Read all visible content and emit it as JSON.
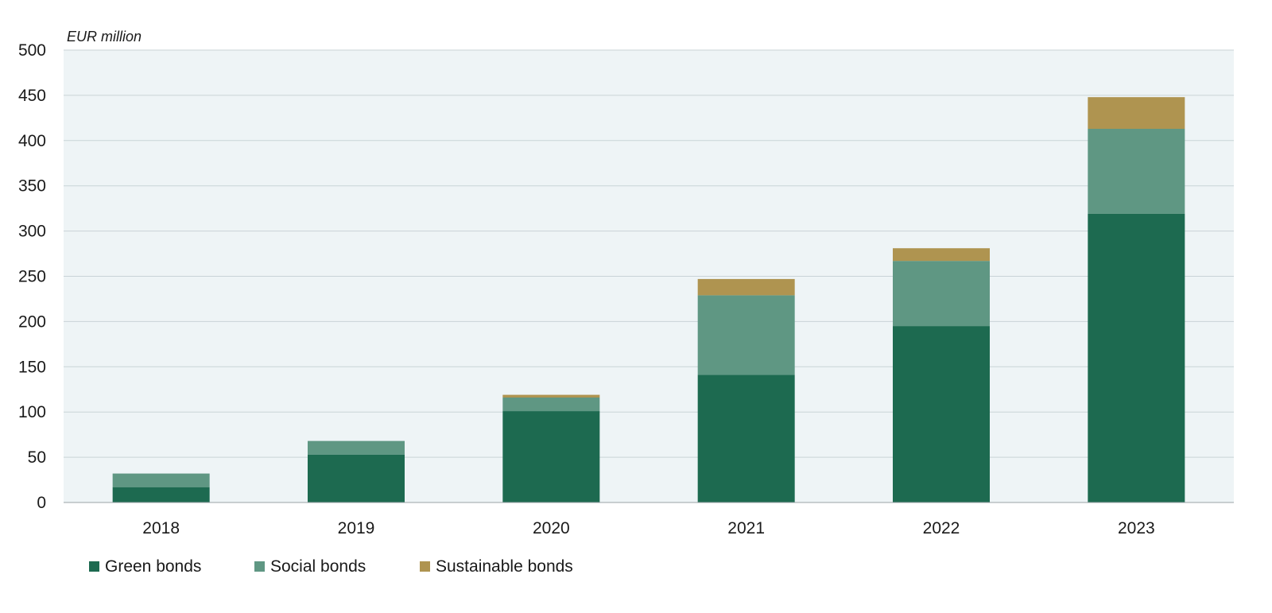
{
  "chart_data": {
    "type": "bar",
    "stacked": true,
    "unit_label": "EUR million",
    "categories": [
      "2018",
      "2019",
      "2020",
      "2021",
      "2022",
      "2023"
    ],
    "series": [
      {
        "name": "Green bonds",
        "color": "#1d6a50",
        "values": [
          17,
          53,
          101,
          141,
          195,
          319
        ]
      },
      {
        "name": "Social bonds",
        "color": "#5f9783",
        "values": [
          15,
          15,
          15,
          88,
          72,
          94
        ]
      },
      {
        "name": "Sustainable bonds",
        "color": "#af9450",
        "values": [
          0,
          0,
          3,
          18,
          14,
          35
        ]
      }
    ],
    "ylim": [
      0,
      500
    ],
    "yticks": [
      "0",
      "50",
      "100",
      "150",
      "200",
      "250",
      "300",
      "350",
      "400",
      "450",
      "500"
    ],
    "grid": true,
    "legend_position": "bottom-left",
    "plot_background": "#eef4f6"
  }
}
